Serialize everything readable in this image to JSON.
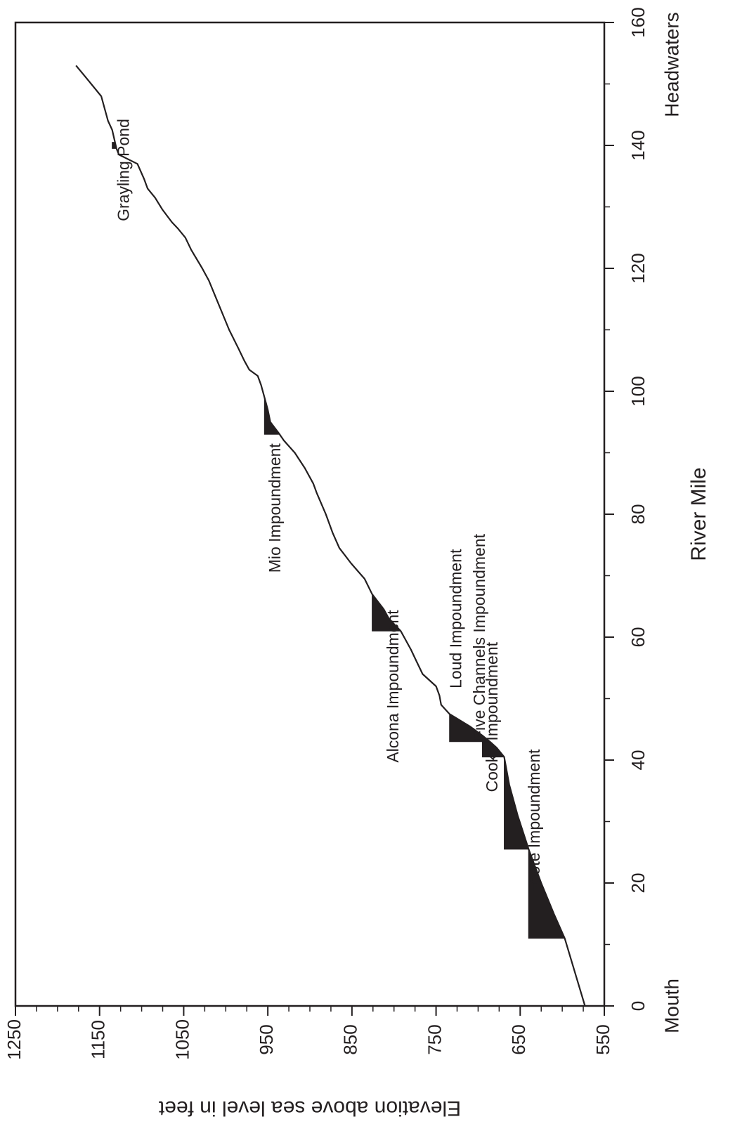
{
  "chart_data": {
    "type": "area",
    "title": "",
    "xlabel": "River Mile",
    "ylabel": "Elevation above sea level in feet",
    "xlim": [
      0,
      160
    ],
    "ylim": [
      550,
      1250
    ],
    "x_ticks": [
      0,
      20,
      40,
      60,
      80,
      100,
      120,
      140,
      160
    ],
    "y_ticks": [
      550,
      650,
      750,
      850,
      950,
      1050,
      1150,
      1250
    ],
    "x_end_labels": {
      "start": "Mouth",
      "end": "Headwaters"
    },
    "series": [
      {
        "x": [
          0,
          11,
          15,
          20,
          25.5,
          31,
          36,
          40.5,
          42,
          43,
          44,
          45.5,
          47.5,
          49,
          50.5,
          52,
          54,
          56,
          58,
          60,
          61,
          63,
          64.5,
          67,
          69.5,
          72,
          74.5,
          77,
          80,
          83.5,
          85,
          87.5,
          90,
          92,
          93,
          95,
          97,
          99,
          101,
          102.5,
          103.5,
          105,
          107,
          110,
          112,
          115,
          118,
          120,
          123,
          125,
          126.5,
          127.5,
          129.5,
          131.5,
          133,
          134.5,
          137,
          138.5,
          139.5,
          142.5,
          144,
          148,
          150.5,
          153
        ],
        "y": [
          573,
          597,
          610,
          625,
          640,
          653,
          663,
          669,
          678,
          686,
          695,
          710,
          734,
          744,
          746,
          750,
          766,
          773,
          780,
          788,
          792,
          806,
          812,
          826,
          835,
          851,
          865,
          873,
          881,
          892,
          896,
          906,
          918,
          931,
          936,
          947,
          950,
          954,
          958,
          962,
          972,
          978,
          985,
          996,
          1002,
          1011,
          1020,
          1028,
          1041,
          1048,
          1057,
          1064,
          1075,
          1084,
          1093,
          1097,
          1105,
          1127,
          1130,
          1135,
          1140,
          1148,
          1163,
          1178
        ]
      }
    ],
    "impoundments": [
      {
        "name": "Foote Impoundment",
        "x": [
          11,
          25.5
        ],
        "pool_elevation": 640
      },
      {
        "name": "Cooke Impoundment",
        "x": [
          25.5,
          40.5
        ],
        "pool_elevation": 669
      },
      {
        "name": "Five Channels Impoundment",
        "x": [
          40.5,
          43
        ],
        "pool_elevation": 695
      },
      {
        "name": "Loud Impoundment",
        "x": [
          43,
          47.5
        ],
        "pool_elevation": 734
      },
      {
        "name": "Alcona Impoundment",
        "x": [
          61,
          67
        ],
        "pool_elevation": 826
      },
      {
        "name": "Mio Impoundment",
        "x": [
          93,
          99
        ],
        "pool_elevation": 954
      },
      {
        "name": "Grayling Pond",
        "x": [
          139.5,
          140.5
        ],
        "pool_elevation": 1135
      }
    ],
    "annotations": [
      {
        "text": "Grayling Pond",
        "x": 136,
        "y": 1120
      },
      {
        "text": "Mio Impoundment",
        "x": 81,
        "y": 940
      },
      {
        "text": "Alcona Impoundment",
        "x": 52,
        "y": 800
      },
      {
        "text": "Loud Impoundment",
        "x": 63,
        "y": 725
      },
      {
        "text": "Five Channels Impoundment",
        "x": 60,
        "y": 697
      },
      {
        "text": "Cooke Impoundment",
        "x": 47,
        "y": 682
      },
      {
        "text": "Foote Impoundment",
        "x": 30,
        "y": 632
      }
    ],
    "grid": false,
    "legend": "none"
  }
}
